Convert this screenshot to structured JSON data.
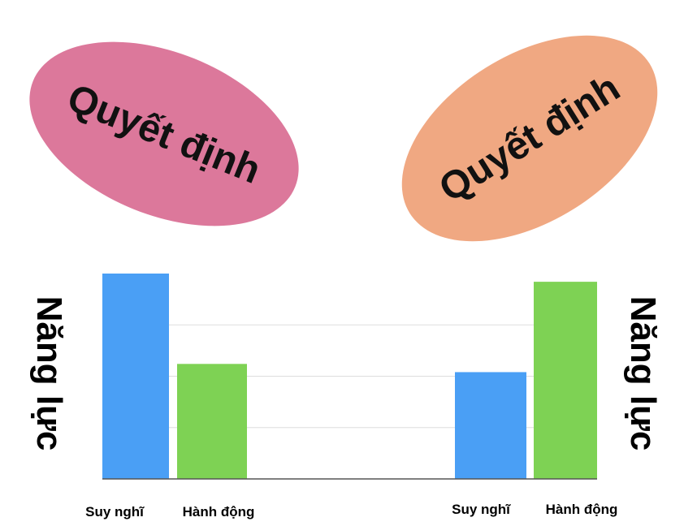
{
  "decisions": {
    "left": {
      "label": "Quyết định",
      "color": "#dc789b"
    },
    "right": {
      "label": "Quyết định",
      "color": "#f0a882"
    }
  },
  "side_labels": {
    "left": "Năng lực",
    "right": "Năng lực"
  },
  "chart_data": {
    "type": "bar",
    "title": "",
    "xlabel": "",
    "ylabel": "Năng lực",
    "ylim": [
      0,
      100
    ],
    "grid": true,
    "groups": [
      {
        "categories": [
          "Suy nghĩ",
          "Hành động"
        ],
        "values": [
          100,
          56
        ]
      },
      {
        "categories": [
          "Suy nghĩ",
          "Hành động"
        ],
        "values": [
          52,
          96
        ]
      }
    ],
    "colors": {
      "Suy nghĩ": "#4a9ff5",
      "Hành động": "#7ed254"
    }
  }
}
